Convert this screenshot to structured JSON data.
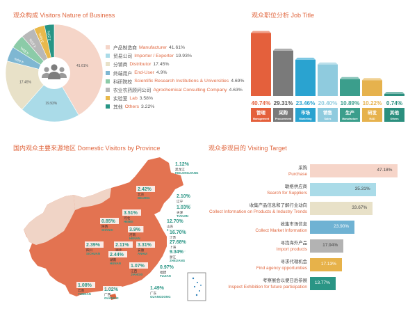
{
  "nature": {
    "title": "观众构成 Visitors Nature of  Business",
    "chart_data": {
      "type": "pie",
      "labels": [
        "产品制造商 Manufacturer",
        "贸易公司 Importer / Exporter",
        "分销商 Distributor",
        "终端用户 End-User",
        "科研院校 Scientific Research Institutions & Universities",
        "农业农药顾问公司 Agrochemical Consulting Company",
        "实验室 Lab",
        "其他 Others"
      ],
      "values": [
        41.61,
        19.93,
        17.45,
        4.9,
        4.69,
        4.63,
        3.58,
        3.22
      ],
      "slice_labels": [
        "41.61%",
        "19.93%",
        "17.45%",
        "4.90%",
        "4.69%",
        "4.63%",
        "3.58%",
        "3.22%"
      ],
      "colors": [
        "#f5d5c8",
        "#aadbe8",
        "#e8e1c8",
        "#7fb7d2",
        "#8ccba8",
        "#b8b8b8",
        "#e9b94b",
        "#279585"
      ]
    },
    "legend": [
      {
        "cn": "产品制造商",
        "en": "Manufacturer",
        "val": "41.61%"
      },
      {
        "cn": "贸易公司",
        "en": "Importer / Exporter",
        "val": "19.93%"
      },
      {
        "cn": "分销商",
        "en": "Distributor",
        "val": "17.45%"
      },
      {
        "cn": "终端用户",
        "en": "End-User",
        "val": "4.9%"
      },
      {
        "cn": "科研院校",
        "en": "Scientific Research Institutions & Universities",
        "val": "4.69%"
      },
      {
        "cn": "农业农药顾问公司",
        "en": "Agrochemical Consulting Company",
        "val": "4.63%"
      },
      {
        "cn": "实验室",
        "en": "Lab",
        "val": "3.58%"
      },
      {
        "cn": "其他",
        "en": "Others",
        "val": "3.22%"
      }
    ]
  },
  "job": {
    "title": "观众职位分析 Job Title",
    "chart_data": {
      "type": "bar",
      "categories": [
        "管理 Management",
        "采购 Procurement",
        "市场 Marketing",
        "销售 Sales",
        "生产 Manufacture",
        "研发 R&D",
        "其他 Others"
      ],
      "values": [
        40.74,
        29.31,
        23.46,
        20.4,
        10.89,
        10.22,
        0.74
      ],
      "value_labels": [
        "40.74%",
        "29.31%",
        "23.46%",
        "20.40%",
        "10.89%",
        "10.22%",
        "0.74%"
      ],
      "ylim": [
        0,
        45
      ],
      "colors": [
        "#e4603c",
        "#7a7a7a",
        "#2aa3d0",
        "#8fcbde",
        "#3b9e8c",
        "#e6b24d",
        "#2b8f7e"
      ]
    },
    "labels": [
      {
        "cn": "管理",
        "en": "Management"
      },
      {
        "cn": "采购",
        "en": "Procurement"
      },
      {
        "cn": "市场",
        "en": "Marketing"
      },
      {
        "cn": "销售",
        "en": "Sales"
      },
      {
        "cn": "生产",
        "en": "Manufacture"
      },
      {
        "cn": "研发",
        "en": "R&D"
      },
      {
        "cn": "其他",
        "en": "Others"
      }
    ]
  },
  "province": {
    "title": "国内观众主要来源地区 Domestic Visitors by Province",
    "labels": [
      {
        "val": "1.12%",
        "cn": "黑龙江",
        "en": "HEILONGJIANG"
      },
      {
        "val": "2.42%",
        "cn": "北京",
        "en": "BEIJING"
      },
      {
        "val": "2.10%",
        "cn": "辽宁",
        "en": "LIAONING"
      },
      {
        "val": "1.03%",
        "cn": "天津",
        "en": "TIANJIN"
      },
      {
        "val": "3.51%",
        "cn": "河北",
        "en": "HEBEI"
      },
      {
        "val": "0.85%",
        "cn": "陕西",
        "en": "SHANXI"
      },
      {
        "val": "12.70%",
        "cn": "山东",
        "en": "SHANDONG"
      },
      {
        "val": "3.9%",
        "cn": "河南",
        "en": "HENAN"
      },
      {
        "val": "16.70%",
        "cn": "江苏",
        "en": "JIANGSU"
      },
      {
        "val": "27.68%",
        "cn": "上海",
        "en": "SHANGHAI"
      },
      {
        "val": "2.39%",
        "cn": "四川",
        "en": "SICHUAN"
      },
      {
        "val": "2.11%",
        "cn": "湖北",
        "en": "HUBEI"
      },
      {
        "val": "3.31%",
        "cn": "安徽",
        "en": "ANHUI"
      },
      {
        "val": "9.34%",
        "cn": "浙江",
        "en": "ZHEJIANG"
      },
      {
        "val": "2.44%",
        "cn": "湖南",
        "en": "HUNAN"
      },
      {
        "val": "1.07%",
        "cn": "江西",
        "en": "JIANGXI"
      },
      {
        "val": "0.97%",
        "cn": "福建",
        "en": "FUJIAN"
      },
      {
        "val": "1.08%",
        "cn": "云南",
        "en": "YUNNAN"
      },
      {
        "val": "1.02%",
        "cn": "广西",
        "en": "GUANGXI"
      },
      {
        "val": "1.49%",
        "cn": "广东",
        "en": "GUANGDONG"
      }
    ]
  },
  "target": {
    "title": "观众参观目的 Visiting Target",
    "chart_data": {
      "type": "bar",
      "orientation": "horizontal",
      "categories": [
        "采购 Purchase",
        "联络供应商 Search for Suppliers",
        "收集产品信息和了解行业动向 Collect Information on Products & Industry Trends",
        "收集市场信息 Collect Market Information",
        "寻找海外产品 Import products",
        "寻求代理机会 Find agency opportunities",
        "考察展会以便日后参展 Inspect Exhibition for future participation"
      ],
      "values": [
        47.18,
        35.31,
        33.67,
        23.9,
        17.94,
        17.13,
        13.77
      ],
      "value_labels": [
        "47.18%",
        "35.31%",
        "33.67%",
        "23.90%",
        "17.94%",
        "17.13%",
        "13.77%"
      ],
      "xlim": [
        0,
        50
      ],
      "colors": [
        "#f6d5c9",
        "#aadbe8",
        "#e8e1c8",
        "#6fb2d3",
        "#b3b3b3",
        "#e7b24a",
        "#2a9585"
      ]
    },
    "labels": [
      {
        "cn": "采购",
        "en": "Purchase"
      },
      {
        "cn": "联络供应商",
        "en": "Search for Suppliers"
      },
      {
        "cn": "收集产品信息和了解行业动向",
        "en": "Collect Information on Products & Industry Trends"
      },
      {
        "cn": "收集市场信息",
        "en": "Collect Market Information"
      },
      {
        "cn": "寻找海外产品",
        "en": "Import products"
      },
      {
        "cn": "寻求代理机会",
        "en": "Find agency opportunities"
      },
      {
        "cn": "考察展会以便日后参展",
        "en": "Inspect Exhibition for future participation"
      }
    ]
  }
}
